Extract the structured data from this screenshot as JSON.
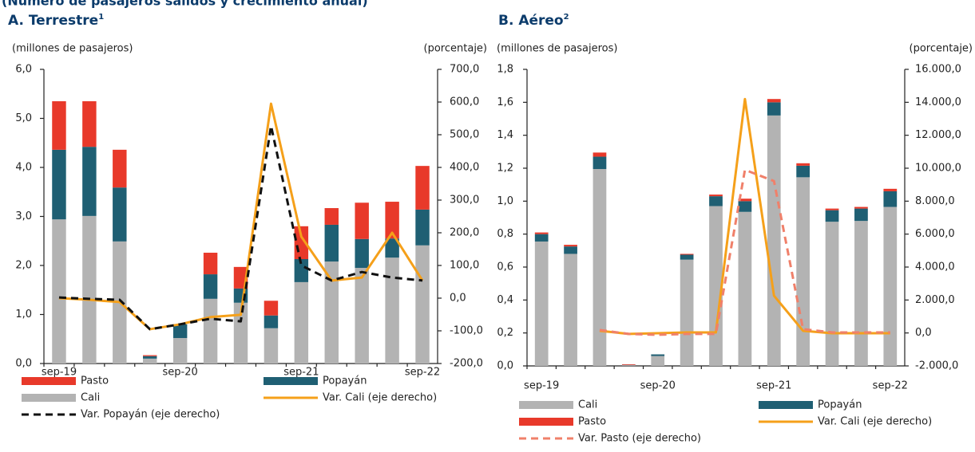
{
  "subtitle": "(Número de pasajeros salidos y crecimiento anual)",
  "chart_data": [
    {
      "type": "bar",
      "title": "A. Terrestre",
      "title_note": "1",
      "y_label": "(millones de pasajeros)",
      "y2_label": "(porcentaje)",
      "categories": [
        "sep-19",
        null,
        null,
        null,
        "sep-20",
        null,
        null,
        null,
        "sep-21",
        null,
        null,
        null,
        "sep-22"
      ],
      "series": [
        {
          "name": "Cali",
          "type": "bar",
          "color": "#b3b3b3",
          "values": [
            2.94,
            3.01,
            2.49,
            0.1,
            0.52,
            1.32,
            1.24,
            0.72,
            1.66,
            2.08,
            1.95,
            2.16,
            2.41
          ]
        },
        {
          "name": "Popayán",
          "type": "bar",
          "color": "#1f5f73",
          "values": [
            1.42,
            1.41,
            1.1,
            0.05,
            0.28,
            0.5,
            0.29,
            0.26,
            0.47,
            0.75,
            0.59,
            0.39,
            0.73
          ]
        },
        {
          "name": "Pasto",
          "type": "bar",
          "color": "#e8392a",
          "values": [
            0.99,
            0.93,
            0.77,
            0.02,
            0,
            0.44,
            0.44,
            0.3,
            0.67,
            0.34,
            0.74,
            0.75,
            0.89
          ]
        },
        {
          "name": "Var. Cali (eje derecho)",
          "type": "line",
          "axis": "y2",
          "color": "#f5a01a",
          "dashed": false,
          "values": [
            0,
            -5,
            -12,
            -95,
            -80,
            -58,
            -51,
            595,
            188,
            54,
            63,
            200,
            54
          ]
        },
        {
          "name": "Var. Popayán (eje derecho)",
          "type": "line",
          "axis": "y2",
          "color": "#111111",
          "dashed": true,
          "values": [
            2,
            -2,
            -5,
            -95,
            -80,
            -63,
            -71,
            527,
            100,
            54,
            80,
            63,
            54
          ]
        }
      ],
      "ylim": [
        0,
        6
      ],
      "yticks": [
        {
          "value": 0,
          "label": "0,0"
        },
        {
          "value": 1,
          "label": "1,0"
        },
        {
          "value": 2,
          "label": "2,0"
        },
        {
          "value": 3,
          "label": "3,0"
        },
        {
          "value": 4,
          "label": "4,0"
        },
        {
          "value": 5,
          "label": "5,0"
        },
        {
          "value": 6,
          "label": "6,0"
        }
      ],
      "y2lim": [
        -200,
        700
      ],
      "y2ticks": [
        {
          "value": -200,
          "label": "-200,0"
        },
        {
          "value": -100,
          "label": "-100,0"
        },
        {
          "value": 0,
          "label": "0,0"
        },
        {
          "value": 100,
          "label": "100,0"
        },
        {
          "value": 200,
          "label": "200,0"
        },
        {
          "value": 300,
          "label": "300,0"
        },
        {
          "value": 400,
          "label": "400,0"
        },
        {
          "value": 500,
          "label": "500,0"
        },
        {
          "value": 600,
          "label": "600,0"
        },
        {
          "value": 700,
          "label": "700,0"
        }
      ],
      "grid": false
    },
    {
      "type": "bar",
      "title": "B. Aéreo",
      "title_note": "2",
      "y_label": "(millones de pasajeros)",
      "y2_label": "(porcentaje)",
      "categories": [
        "sep-19",
        null,
        null,
        null,
        "sep-20",
        null,
        null,
        null,
        "sep-21",
        null,
        null,
        null,
        "sep-22"
      ],
      "series": [
        {
          "name": "Cali",
          "type": "bar",
          "color": "#b3b3b3",
          "values": [
            0.755,
            0.68,
            1.195,
            0.004,
            0.06,
            0.645,
            0.97,
            0.935,
            1.52,
            1.145,
            0.875,
            0.88,
            0.965
          ]
        },
        {
          "name": "Popayán",
          "type": "bar",
          "color": "#1f5f73",
          "values": [
            0.045,
            0.045,
            0.075,
            0.002,
            0.01,
            0.03,
            0.06,
            0.065,
            0.08,
            0.07,
            0.07,
            0.075,
            0.095
          ]
        },
        {
          "name": "Pasto",
          "type": "bar",
          "color": "#e8392a",
          "values": [
            0.01,
            0.01,
            0.025,
            0.004,
            0,
            0.005,
            0.01,
            0.015,
            0.02,
            0.015,
            0.01,
            0.01,
            0.015
          ]
        },
        {
          "name": "Var. Cali (eje derecho)",
          "type": "line",
          "axis": "y2",
          "color": "#f5a01a",
          "dashed": false,
          "values": [
            null,
            null,
            130,
            -60,
            -15,
            35,
            35,
            14200,
            2260,
            130,
            -15,
            -15,
            -15
          ]
        },
        {
          "name": "Var. Pasto (eje derecho)",
          "type": "line",
          "axis": "y2",
          "color": "#f0806a",
          "dashed": true,
          "values": [
            null,
            null,
            180,
            -60,
            -110,
            -60,
            -60,
            9900,
            9220,
            230,
            35,
            35,
            35
          ]
        }
      ],
      "ylim": [
        0,
        1.8
      ],
      "yticks": [
        {
          "value": 0,
          "label": "0,0"
        },
        {
          "value": 0.2,
          "label": "0,2"
        },
        {
          "value": 0.4,
          "label": "0,4"
        },
        {
          "value": 0.6,
          "label": "0,6"
        },
        {
          "value": 0.8,
          "label": "0,8"
        },
        {
          "value": 1,
          "label": "1,0"
        },
        {
          "value": 1.2,
          "label": "1,2"
        },
        {
          "value": 1.4,
          "label": "1,4"
        },
        {
          "value": 1.6,
          "label": "1,6"
        },
        {
          "value": 1.8,
          "label": "1,8"
        }
      ],
      "y2lim": [
        -2000,
        16000
      ],
      "y2ticks": [
        {
          "value": -2000,
          "label": "-2.000,0"
        },
        {
          "value": 0,
          "label": "0,0"
        },
        {
          "value": 2000,
          "label": "2.000,0"
        },
        {
          "value": 4000,
          "label": "4.000,0"
        },
        {
          "value": 6000,
          "label": "6.000,0"
        },
        {
          "value": 8000,
          "label": "8.000,0"
        },
        {
          "value": 10000,
          "label": "10.000,0"
        },
        {
          "value": 12000,
          "label": "12.000,0"
        },
        {
          "value": 14000,
          "label": "14.000,0"
        },
        {
          "value": 16000,
          "label": "16.000,0"
        }
      ],
      "grid": false
    }
  ]
}
